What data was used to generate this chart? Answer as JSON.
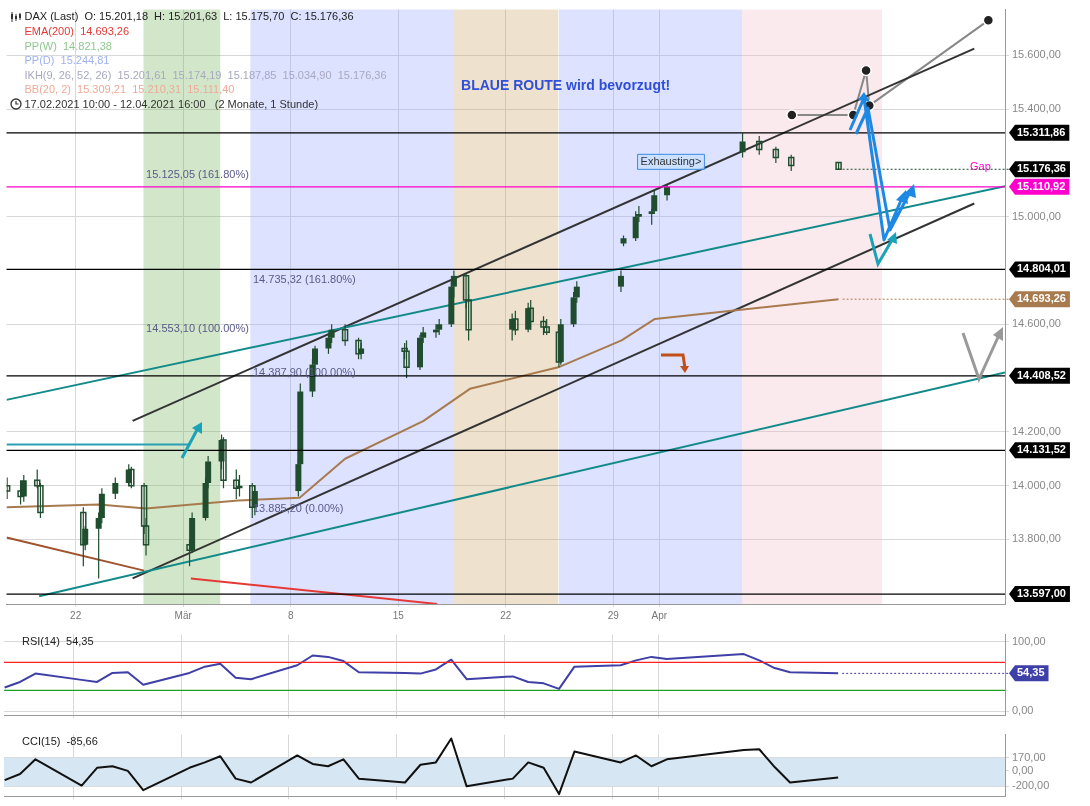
{
  "chart_data": [
    {
      "type": "candlestick",
      "title": "DAX (Last)  O: 15.201,18  H: 15.201,63  L: 15.175,70  C: 15.176,36",
      "subtitle": "BLAUE ROUTE wird bevorzugt!",
      "xlim": [
        "2021-02-17T12:00",
        "2021-04-23T12:00"
      ],
      "xticks": [
        {
          "value": "2021-02-22",
          "label": "22"
        },
        {
          "value": "2021-03-01",
          "label": "Mär"
        },
        {
          "value": "2021-03-08",
          "label": "8"
        },
        {
          "value": "2021-03-15",
          "label": "15"
        },
        {
          "value": "2021-03-22",
          "label": "22"
        },
        {
          "value": "2021-03-29",
          "label": "29"
        },
        {
          "value": "2021-04-01",
          "label": "Apr"
        }
      ],
      "ylim": [
        13560,
        15770
      ],
      "yticks": [
        {
          "value": 13800,
          "label": "13.800,00"
        },
        {
          "value": 14000,
          "label": "14.000,00"
        },
        {
          "value": 14200,
          "label": "14.200,00"
        },
        {
          "value": 14600,
          "label": "14.600,00"
        },
        {
          "value": 15000,
          "label": "15.000,00"
        },
        {
          "value": 15400,
          "label": "15.400,00"
        },
        {
          "value": 15600,
          "label": "15.600,00"
        }
      ],
      "grid": true,
      "legend": false,
      "series": [
        {
          "color": "#1f4d2e",
          "x": [
            "2021-02-17T13:00",
            "2021-02-18T10:00",
            "2021-02-18T15:00",
            "2021-02-19T12:00",
            "2021-02-19T17:00",
            "2021-02-22T12:00",
            "2021-02-22T15:00",
            "2021-02-23T12:00",
            "2021-02-23T17:00",
            "2021-02-24T14:00",
            "2021-02-25T11:00",
            "2021-02-25T15:00",
            "2021-02-26T11:00",
            "2021-02-26T14:00",
            "2021-03-01T10:00",
            "2021-03-01T14:00",
            "2021-03-02T11:00",
            "2021-03-02T15:00",
            "2021-03-03T12:00",
            "2021-03-03T15:00",
            "2021-03-04T11:00",
            "2021-03-04T16:00",
            "2021-03-05T12:00",
            "2021-03-05T16:00",
            "2021-03-08T12:00",
            "2021-03-08T15:00",
            "2021-03-09T10:00",
            "2021-03-09T14:00",
            "2021-03-10T11:00",
            "2021-03-10T16:00",
            "2021-03-11T13:00",
            "2021-03-12T10:00",
            "2021-03-12T14:00",
            "2021-03-15T10:00",
            "2021-03-15T13:00",
            "2021-03-16T10:00",
            "2021-03-16T15:00",
            "2021-03-17T11:00",
            "2021-03-17T16:00",
            "2021-03-18T11:00",
            "2021-03-18T15:00",
            "2021-03-19T10:00",
            "2021-03-19T14:00",
            "2021-03-22T10:00",
            "2021-03-22T15:00",
            "2021-03-23T11:00",
            "2021-03-23T15:00",
            "2021-03-24T11:00",
            "2021-03-24T16:00",
            "2021-03-25T11:00",
            "2021-03-25T14:00",
            "2021-03-26T10:00",
            "2021-03-26T15:00",
            "2021-03-29T12:00",
            "2021-03-29T16:00",
            "2021-03-30T11:00",
            "2021-03-30T16:00",
            "2021-03-31T12:00",
            "2021-03-31T16:00",
            "2021-04-01T12:00",
            "2021-04-06T10:00",
            "2021-04-07T12:00",
            "2021-04-08T14:00",
            "2021-04-09T14:00",
            "2021-04-12T16:00"
          ],
          "ohlc": [
            [
              14000,
              14030,
              13950,
              13980
            ],
            [
              13980,
              14020,
              13930,
              13960
            ],
            [
              13960,
              14040,
              13940,
              14020
            ],
            [
              14020,
              14060,
              13990,
              14000
            ],
            [
              14000,
              14010,
              13880,
              13900
            ],
            [
              13900,
              13920,
              13700,
              13780
            ],
            [
              13780,
              13850,
              13760,
              13840
            ],
            [
              13840,
              13900,
              13655,
              13880
            ],
            [
              13880,
              13990,
              13860,
              13970
            ],
            [
              13970,
              14030,
              13950,
              14010
            ],
            [
              14010,
              14080,
              14000,
              14060
            ],
            [
              14060,
              14070,
              13990,
              14000
            ],
            [
              14000,
              14010,
              13820,
              13850
            ],
            [
              13850,
              13880,
              13740,
              13780
            ],
            [
              13780,
              13800,
              13700,
              13760
            ],
            [
              13760,
              13900,
              13750,
              13880
            ],
            [
              13880,
              14030,
              13870,
              14010
            ],
            [
              14010,
              14110,
              13990,
              14090
            ],
            [
              14090,
              14190,
              14060,
              14170
            ],
            [
              14170,
              14180,
              13990,
              14020
            ],
            [
              14020,
              14060,
              13950,
              13990
            ],
            [
              13990,
              14040,
              13960,
              14000
            ],
            [
              14000,
              14010,
              13880,
              13920
            ],
            [
              13920,
              14000,
              13890,
              13980
            ],
            [
              13980,
              14100,
              13960,
              14080
            ],
            [
              14080,
              14380,
              14070,
              14350
            ],
            [
              14350,
              14470,
              14330,
              14450
            ],
            [
              14450,
              14520,
              14430,
              14510
            ],
            [
              14510,
              14570,
              14490,
              14550
            ],
            [
              14550,
              14600,
              14530,
              14580
            ],
            [
              14580,
              14600,
              14520,
              14540
            ],
            [
              14540,
              14550,
              14470,
              14490
            ],
            [
              14490,
              14530,
              14470,
              14510
            ],
            [
              14510,
              14530,
              14470,
              14500
            ],
            [
              14500,
              14540,
              14400,
              14440
            ],
            [
              14440,
              14560,
              14430,
              14550
            ],
            [
              14550,
              14590,
              14530,
              14570
            ],
            [
              14570,
              14600,
              14550,
              14580
            ],
            [
              14580,
              14620,
              14560,
              14600
            ],
            [
              14600,
              14760,
              14590,
              14740
            ],
            [
              14740,
              14800,
              14700,
              14780
            ],
            [
              14780,
              14790,
              14660,
              14690
            ],
            [
              14690,
              14710,
              14540,
              14580
            ],
            [
              14580,
              14640,
              14540,
              14620
            ],
            [
              14620,
              14650,
              14560,
              14580
            ],
            [
              14580,
              14680,
              14570,
              14660
            ],
            [
              14660,
              14690,
              14580,
              14610
            ],
            [
              14610,
              14630,
              14560,
              14590
            ],
            [
              14590,
              14620,
              14560,
              14570
            ],
            [
              14570,
              14580,
              14440,
              14460
            ],
            [
              14460,
              14620,
              14450,
              14600
            ],
            [
              14600,
              14720,
              14590,
              14700
            ],
            [
              14700,
              14760,
              14680,
              14740
            ],
            [
              14740,
              14800,
              14720,
              14780
            ],
            [
              14900,
              14930,
              14890,
              14920
            ],
            [
              14920,
              15020,
              14910,
              15000
            ],
            [
              15000,
              15040,
              14980,
              15010
            ],
            [
              15010,
              15030,
              14970,
              15020
            ],
            [
              15020,
              15100,
              15010,
              15080
            ],
            [
              15080,
              15120,
              15060,
              15110
            ],
            [
              15240,
              15310,
              15220,
              15280
            ],
            [
              15280,
              15300,
              15230,
              15250
            ],
            [
              15250,
              15260,
              15200,
              15220
            ],
            [
              15220,
              15230,
              15170,
              15190
            ],
            [
              15201.18,
              15201.63,
              15175.7,
              15176.36
            ]
          ]
        },
        {
          "type": "line",
          "color": "#a87b4f",
          "x": [
            "2021-02-17T12:00",
            "2021-02-23T12:00",
            "2021-02-26T14:00",
            "2021-03-04T14:00",
            "2021-03-08T14:00",
            "2021-03-11T13:00",
            "2021-03-16T15:00",
            "2021-03-19T16:00",
            "2021-03-25T10:00",
            "2021-03-29T13:00",
            "2021-03-31T17:00",
            "2021-04-12T16:00"
          ],
          "values": [
            13920,
            13930,
            13915,
            13945,
            13955,
            14100,
            14240,
            14360,
            14440,
            14540,
            14620,
            14693.26
          ]
        },
        {
          "type": "line",
          "color": "#138a8a",
          "x": [
            "2021-02-17T12:00",
            "2021-04-23T12:00"
          ],
          "values": [
            14319,
            15113
          ]
        },
        {
          "type": "line",
          "color": "#138a8a",
          "x": [
            "2021-02-19T15:00",
            "2021-04-23T12:00"
          ],
          "values": [
            13589,
            14421
          ]
        },
        {
          "type": "line",
          "color": "#2aa0b5",
          "x": [
            "2021-02-17T12:00",
            "2021-03-01T11:00"
          ],
          "values": [
            14153,
            14153
          ]
        },
        {
          "type": "line",
          "color": "#333333",
          "x": [
            "2021-02-25T17:00",
            "2021-04-21T12:00"
          ],
          "values": [
            14241,
            15625
          ]
        },
        {
          "type": "line",
          "color": "#333333",
          "x": [
            "2021-02-25T17:00",
            "2021-04-21T12:00"
          ],
          "values": [
            13655,
            15049
          ]
        },
        {
          "type": "line",
          "color": "#a0522d",
          "x": [
            "2021-02-17T12:00",
            "2021-02-26T11:00"
          ],
          "values": [
            13807,
            13684
          ]
        },
        {
          "type": "line",
          "color": "#e53935",
          "x": [
            "2021-03-01T12:00",
            "2021-03-17T13:00"
          ],
          "values": [
            13655,
            13560
          ]
        },
        {
          "type": "line",
          "color": "#888888",
          "marker": "circle",
          "x": [
            "2021-04-09T15:00",
            "2021-04-13T15:00",
            "2021-04-14T11:00",
            "2021-04-14T16:00",
            "2021-04-22T10:00"
          ],
          "values": [
            15378,
            15378,
            15544,
            15413,
            15730
          ]
        }
      ],
      "bands": [
        {
          "axis": "x",
          "from": "2021-02-26T10:00",
          "to": "2021-03-03T10:00",
          "color": "#6ab04c"
        },
        {
          "axis": "x",
          "from": "2021-03-05T09:00",
          "to": "2021-03-18T15:00",
          "color": "#8c9eff"
        },
        {
          "axis": "x",
          "from": "2021-03-18T15:00",
          "to": "2021-03-25T10:00",
          "color": "#c8a060"
        },
        {
          "axis": "x",
          "from": "2021-03-25T11:00",
          "to": "2021-04-06T09:00",
          "color": "#8c9eff"
        },
        {
          "axis": "x",
          "from": "2021-04-06T09:00",
          "to": "2021-04-15T12:00",
          "color": "#f0b8c8"
        }
      ],
      "ref_lines": [
        {
          "axis": "y",
          "value": 15311.86,
          "label": "15.311,86",
          "color": "#000000",
          "line_style": "solid"
        },
        {
          "axis": "y",
          "value": 15110.92,
          "label": "15.110,92",
          "color": "#ff00cc",
          "line_style": "solid"
        },
        {
          "axis": "y",
          "value": 14804.01,
          "label": "14.804,01",
          "color": "#000000",
          "line_style": "solid"
        },
        {
          "axis": "y",
          "value": 14408.52,
          "label": "14.408,52",
          "color": "#000000",
          "line_style": "solid"
        },
        {
          "axis": "y",
          "value": 14131.52,
          "label": "14.131,52",
          "color": "#000000",
          "line_style": "solid"
        },
        {
          "axis": "y",
          "value": 13597.0,
          "label": "13.597,00",
          "color": "#000000",
          "line_style": "solid"
        }
      ],
      "annotations": [
        "EMA(200)  14.693,26",
        "PP(W)  14.821,38",
        "PP(D)  15.244,81",
        "IKH(9, 26, 52, 26)  15.201,61  15.174,19  15.187,85  15.034,90  15.176,36",
        "BB(20, 2)  15.309,21  15.210,31  15.111,40",
        "17.02.2021 10:00 - 12.04.2021 16:00   (2 Monate, 1 Stunde)",
        "Exhausting>",
        "Gap",
        {
          "text": "15.176,36",
          "x": "2021-04-12T16:00",
          "y": 15176.36
        },
        {
          "text": "14.693,26",
          "x": "2021-04-12T16:00",
          "y": 14693.26
        },
        {
          "text": "15.125,05 (161.80%)",
          "x": "2021-02-26T11:00",
          "y": 15125.05
        },
        {
          "text": "14.553,10 (100.00%)",
          "x": "2021-02-26T11:00",
          "y": 14553.1
        },
        {
          "text": "14.735,32 (161.80%)",
          "x": "2021-03-05T10:00",
          "y": 14735.32
        },
        {
          "text": "14.387,90 (100.00%)",
          "x": "2021-03-05T10:00",
          "y": 14387.9
        },
        {
          "text": "13.885,20 (0.00%)",
          "x": "2021-03-05T10:00",
          "y": 13885.2
        }
      ]
    },
    {
      "type": "line",
      "title": "RSI(14)  54,35",
      "xlim": [
        "2021-02-17T12:00",
        "2021-04-23T12:00"
      ],
      "xticks": [
        {
          "value": "2021-02-22",
          "label": null
        },
        {
          "value": "2021-03-01",
          "label": null
        },
        {
          "value": "2021-03-08",
          "label": null
        },
        {
          "value": "2021-03-15",
          "label": null
        },
        {
          "value": "2021-03-22",
          "label": null
        },
        {
          "value": "2021-03-29",
          "label": null
        },
        {
          "value": "2021-04-01",
          "label": null
        }
      ],
      "ylim": [
        -6,
        110
      ],
      "yticks": [
        {
          "value": 0,
          "label": "0,00"
        },
        {
          "value": 100,
          "label": "100,00"
        }
      ],
      "tick_labels": "y",
      "grid": true,
      "legend": false,
      "series": [
        {
          "color": "#3f3fa8",
          "x": [
            "2021-02-17T13:00",
            "2021-02-18T13:00",
            "2021-02-19T13:00",
            "2021-02-22T13:00",
            "2021-02-23T13:00",
            "2021-02-24T13:00",
            "2021-02-25T13:00",
            "2021-02-26T13:00",
            "2021-03-01T13:00",
            "2021-03-02T13:00",
            "2021-03-03T13:00",
            "2021-03-04T13:00",
            "2021-03-05T13:00",
            "2021-03-08T13:00",
            "2021-03-09T13:00",
            "2021-03-10T13:00",
            "2021-03-11T13:00",
            "2021-03-12T13:00",
            "2021-03-15T13:00",
            "2021-03-16T13:00",
            "2021-03-17T13:00",
            "2021-03-18T13:00",
            "2021-03-19T13:00",
            "2021-03-22T13:00",
            "2021-03-23T13:00",
            "2021-03-24T13:00",
            "2021-03-25T13:00",
            "2021-03-26T13:00",
            "2021-03-29T13:00",
            "2021-03-30T13:00",
            "2021-03-31T13:00",
            "2021-04-01T13:00",
            "2021-04-06T13:00",
            "2021-04-07T13:00",
            "2021-04-08T13:00",
            "2021-04-09T13:00",
            "2021-04-12T16:00"
          ],
          "values": [
            34,
            42,
            54,
            45,
            42,
            55,
            56,
            38,
            55,
            64,
            68,
            48,
            46,
            66,
            80,
            78,
            72,
            56,
            55,
            54,
            60,
            74,
            46,
            50,
            42,
            40,
            32,
            64,
            66,
            73,
            78,
            75,
            82,
            73,
            62,
            56,
            54.35
          ]
        }
      ],
      "ref_lines": [
        {
          "axis": "y",
          "value": 70,
          "color": "#ff2020",
          "line_style": "solid"
        },
        {
          "axis": "y",
          "value": 30,
          "color": "#20a020",
          "line_style": "solid"
        }
      ],
      "annotations": [
        {
          "text": "54,35",
          "x": "2021-04-12T16:00",
          "y": 54.35
        }
      ]
    },
    {
      "type": "line",
      "title": "CCI(15)  -85,66",
      "xlim": [
        "2021-02-17T12:00",
        "2021-04-23T12:00"
      ],
      "xticks": [
        {
          "value": "2021-02-22",
          "label": null
        },
        {
          "value": "2021-03-01",
          "label": null
        },
        {
          "value": "2021-03-08",
          "label": null
        },
        {
          "value": "2021-03-15",
          "label": null
        },
        {
          "value": "2021-03-22",
          "label": null
        },
        {
          "value": "2021-03-29",
          "label": null
        },
        {
          "value": "2021-04-01",
          "label": null
        }
      ],
      "ylim": [
        -330,
        470
      ],
      "yticks": [
        {
          "value": -200,
          "label": "-200,00"
        },
        {
          "value": 0,
          "label": "0,00"
        },
        {
          "value": 170,
          "label": "170,00"
        }
      ],
      "tick_labels": "y",
      "grid": true,
      "legend": false,
      "series": [
        {
          "color": "#111111",
          "x": [
            "2021-02-17T13:00",
            "2021-02-18T13:00",
            "2021-02-19T13:00",
            "2021-02-22T13:00",
            "2021-02-23T13:00",
            "2021-02-24T13:00",
            "2021-02-25T13:00",
            "2021-02-26T13:00",
            "2021-03-01T13:00",
            "2021-03-02T13:00",
            "2021-03-03T13:00",
            "2021-03-04T13:00",
            "2021-03-05T13:00",
            "2021-03-08T13:00",
            "2021-03-09T13:00",
            "2021-03-10T13:00",
            "2021-03-11T13:00",
            "2021-03-12T13:00",
            "2021-03-15T13:00",
            "2021-03-16T13:00",
            "2021-03-17T13:00",
            "2021-03-18T13:00",
            "2021-03-19T13:00",
            "2021-03-22T13:00",
            "2021-03-23T13:00",
            "2021-03-24T13:00",
            "2021-03-25T13:00",
            "2021-03-26T13:00",
            "2021-03-29T13:00",
            "2021-03-30T13:00",
            "2021-03-31T13:00",
            "2021-04-01T13:00",
            "2021-04-06T13:00",
            "2021-04-07T13:00",
            "2021-04-08T13:00",
            "2021-04-09T13:00",
            "2021-04-12T16:00"
          ],
          "values": [
            -120,
            -40,
            150,
            -190,
            40,
            60,
            0,
            -250,
            40,
            110,
            190,
            -100,
            -150,
            200,
            90,
            60,
            150,
            -100,
            -150,
            80,
            110,
            420,
            -200,
            -100,
            110,
            40,
            -300,
            250,
            110,
            200,
            60,
            150,
            270,
            280,
            50,
            -150,
            -85.66
          ]
        }
      ],
      "bands": [
        {
          "axis": "y",
          "from": -200,
          "to": 170,
          "color": "#d6e6f2"
        }
      ]
    }
  ]
}
